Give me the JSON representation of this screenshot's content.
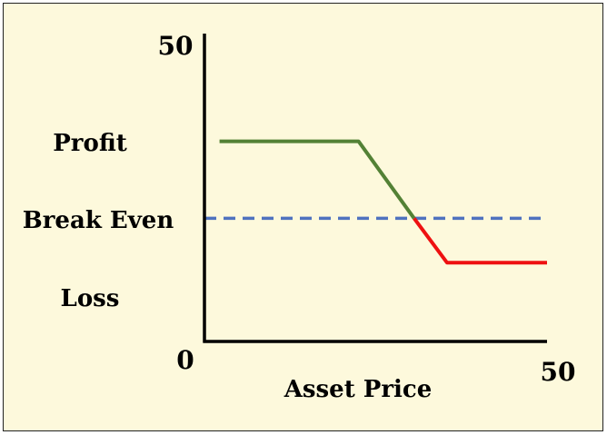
{
  "chart_data": {
    "type": "line",
    "xlabel": "Asset Price",
    "ylabel": "",
    "xlim": [
      0,
      50
    ],
    "ylim": [
      0,
      50
    ],
    "x_ticks": [
      "0",
      "50"
    ],
    "y_ticks": [
      "50"
    ],
    "y_region_labels": [
      "Profit",
      "Break Even",
      "Loss"
    ],
    "break_even": 20,
    "series": [
      {
        "color": "#538135",
        "x": [
          2.2,
          22.5,
          30.6
        ],
        "y": [
          32.5,
          32.5,
          20
        ]
      },
      {
        "color": "#ee1111",
        "x": [
          30.6,
          35.4,
          50
        ],
        "y": [
          20,
          12.8,
          12.8
        ]
      }
    ],
    "break_even_color": "#4f72bf",
    "grid": false,
    "legend": "none"
  }
}
